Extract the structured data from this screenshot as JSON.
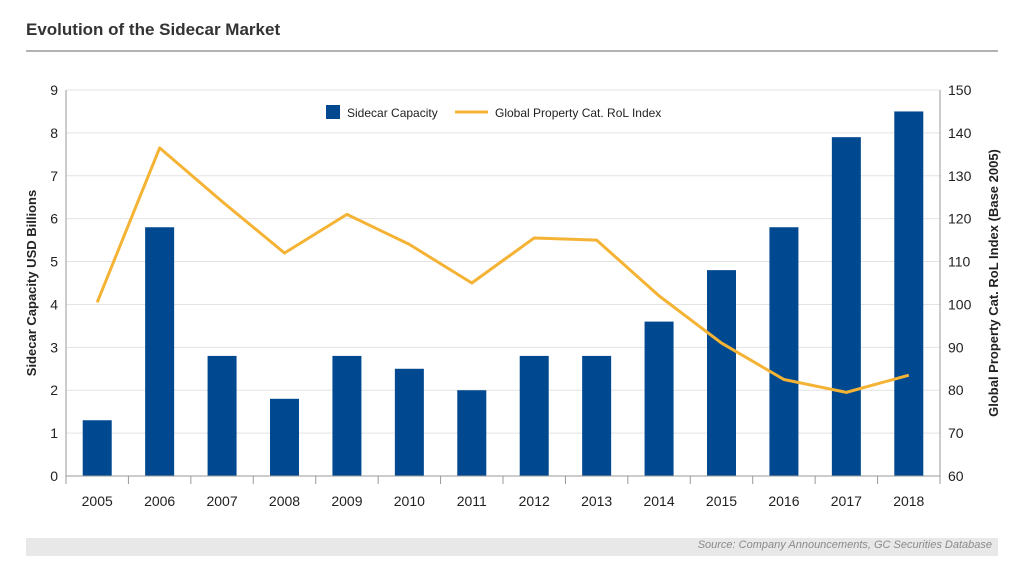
{
  "header": {
    "title": "Evolution of the Sidecar Market"
  },
  "footer": {
    "source": "Source: Company Announcements, GC Securities Database"
  },
  "colors": {
    "bar": "#004990",
    "line": "#f5b335",
    "grid": "#e3e3e3",
    "axis": "#999999"
  },
  "chart_data": {
    "type": "bar+line",
    "categories": [
      "2005",
      "2006",
      "2007",
      "2008",
      "2009",
      "2010",
      "2011",
      "2012",
      "2013",
      "2014",
      "2015",
      "2016",
      "2017",
      "2018"
    ],
    "series": [
      {
        "name": "Sidecar Capacity",
        "type": "bar",
        "axis": "left",
        "values": [
          1.3,
          5.8,
          2.8,
          1.8,
          2.8,
          2.5,
          2.0,
          2.8,
          2.8,
          3.6,
          4.8,
          5.8,
          7.9,
          8.5
        ]
      },
      {
        "name": "Global Property Cat. RoL Index",
        "type": "line",
        "axis": "right",
        "values": [
          100.5,
          136.5,
          124.0,
          112.0,
          121.0,
          114.0,
          105.0,
          115.5,
          115.0,
          102.0,
          91.0,
          82.5,
          79.5,
          83.5
        ]
      }
    ],
    "ylabel_left": "Sidecar Capacity USD Billions",
    "ylabel_right": "Global Property Cat. RoL Index (Base 2005)",
    "ylim_left": [
      0,
      9
    ],
    "ylim_right": [
      60,
      150
    ],
    "yticks_left": [
      "0",
      "1",
      "2",
      "3",
      "4",
      "5",
      "6",
      "7",
      "8",
      "9"
    ],
    "yticks_right": [
      "60",
      "70",
      "80",
      "90",
      "100",
      "110",
      "120",
      "130",
      "140",
      "150"
    ],
    "grid": true,
    "legend_position": "top-center"
  }
}
